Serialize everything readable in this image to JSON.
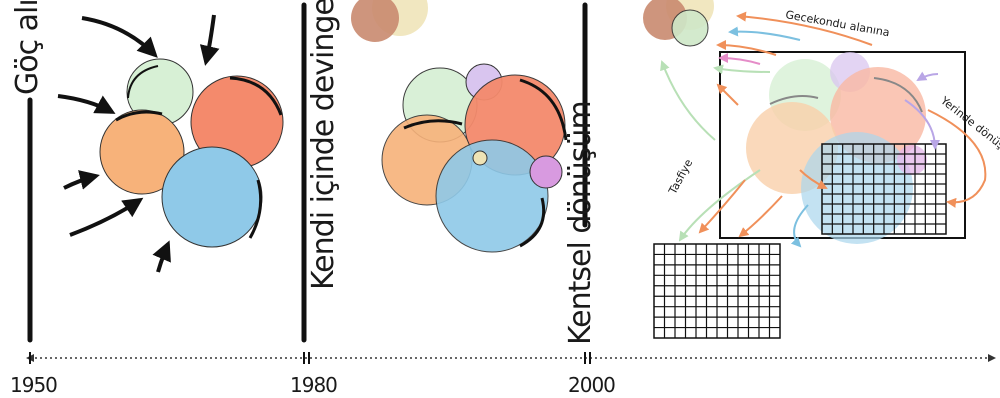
{
  "phases": {
    "p1": {
      "label": "Göç alıyor"
    },
    "p2": {
      "label": "Kendi içinde devingen"
    },
    "p3": {
      "label": "Kentsel dönüşüm"
    }
  },
  "timeline": {
    "years": [
      "1950",
      "1980",
      "2000"
    ]
  },
  "annotations": {
    "gecekondu": "Gecekondu alanına",
    "yerinde": "Yerinde dönüşüm",
    "tasfiye": "Tasfiye"
  },
  "colors": {
    "green": "#d7f0d5",
    "orange": "#f7b27a",
    "red": "#f48a6c",
    "blue": "#8fc9e8",
    "purple": "#d9c5ef",
    "magenta": "#d89ae0",
    "yellow": "#efe3b5",
    "brown": "#c98a6f"
  }
}
